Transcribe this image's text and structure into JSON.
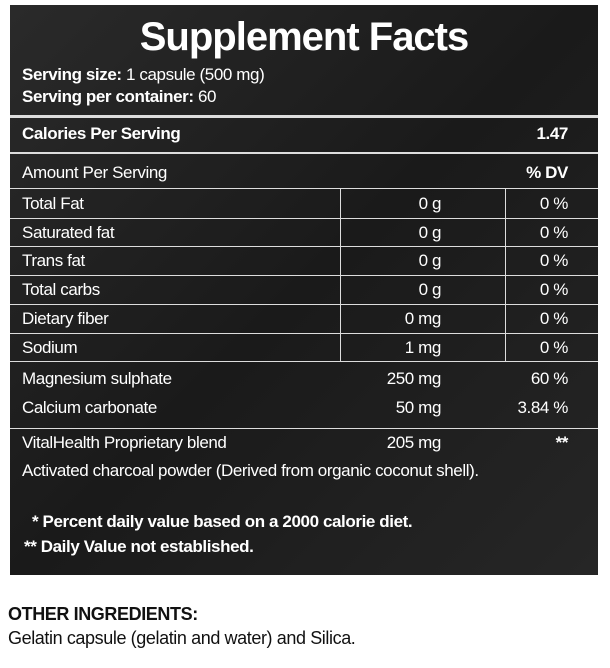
{
  "title": "Supplement Facts",
  "serving": {
    "size_label": "Serving size:",
    "size": "1 capsule (500 mg)",
    "per_container_label": "Serving per container:",
    "per_container": "60"
  },
  "calories": {
    "label": "Calories Per Serving",
    "value": "1.47"
  },
  "header": {
    "amount": "Amount Per Serving",
    "dv": "% DV"
  },
  "table": {
    "rows": [
      [
        "Total Fat",
        "0 g",
        "0 %"
      ],
      [
        "Saturated fat",
        "0 g",
        "0 %"
      ],
      [
        "Trans fat",
        "0 g",
        "0 %"
      ],
      [
        "Total carbs",
        "0 g",
        "0 %"
      ],
      [
        "Dietary fiber",
        "0 mg",
        "0 %"
      ],
      [
        "Sodium",
        "1 mg",
        "0 %"
      ],
      [
        "Magnesium sulphate",
        "250 mg",
        "60 %"
      ],
      [
        "Calcium carbonate",
        "50 mg",
        "3.84 %"
      ]
    ]
  },
  "blend": {
    "name": "VitalHealth Proprietary blend",
    "amount": "205 mg",
    "dv": "**",
    "description": "Activated charcoal powder (Derived from organic coconut shell)."
  },
  "footnotes": [
    "* Percent daily value based on a 2000 calorie diet.",
    "** Daily Value not established."
  ],
  "other_ingredients": {
    "heading": "OTHER INGREDIENTS:",
    "text": "Gelatin capsule (gelatin and water) and Silica."
  }
}
